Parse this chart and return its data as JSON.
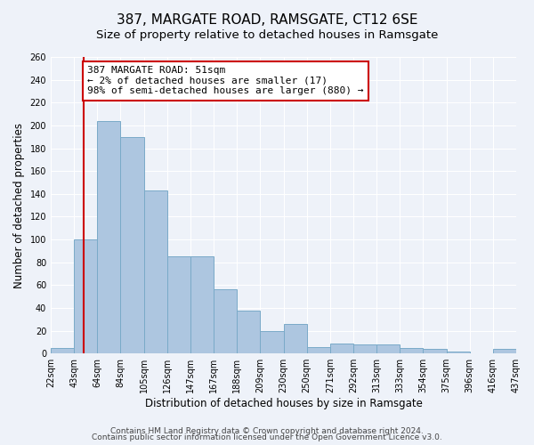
{
  "title": "387, MARGATE ROAD, RAMSGATE, CT12 6SE",
  "subtitle": "Size of property relative to detached houses in Ramsgate",
  "xlabel": "Distribution of detached houses by size in Ramsgate",
  "ylabel": "Number of detached properties",
  "bin_labels": [
    "22sqm",
    "43sqm",
    "64sqm",
    "84sqm",
    "105sqm",
    "126sqm",
    "147sqm",
    "167sqm",
    "188sqm",
    "209sqm",
    "230sqm",
    "250sqm",
    "271sqm",
    "292sqm",
    "313sqm",
    "333sqm",
    "354sqm",
    "375sqm",
    "396sqm",
    "416sqm",
    "437sqm"
  ],
  "bar_heights": [
    5,
    100,
    204,
    190,
    143,
    85,
    85,
    56,
    38,
    20,
    26,
    6,
    9,
    8,
    8,
    5,
    4,
    2,
    0,
    4
  ],
  "bar_color": "#adc6e0",
  "bar_edge_color": "#7aaac8",
  "highlight_line_color": "#cc0000",
  "annotation_text": "387 MARGATE ROAD: 51sqm\n← 2% of detached houses are smaller (17)\n98% of semi-detached houses are larger (880) →",
  "annotation_box_color": "#ffffff",
  "annotation_box_edge_color": "#cc0000",
  "ylim": [
    0,
    260
  ],
  "yticks": [
    0,
    20,
    40,
    60,
    80,
    100,
    120,
    140,
    160,
    180,
    200,
    220,
    240,
    260
  ],
  "footer_line1": "Contains HM Land Registry data © Crown copyright and database right 2024.",
  "footer_line2": "Contains public sector information licensed under the Open Government Licence v3.0.",
  "bg_color": "#eef2f9",
  "plot_bg_color": "#eef2f9",
  "title_fontsize": 11,
  "subtitle_fontsize": 9.5,
  "axis_label_fontsize": 8.5,
  "tick_fontsize": 7,
  "footer_fontsize": 6.5
}
